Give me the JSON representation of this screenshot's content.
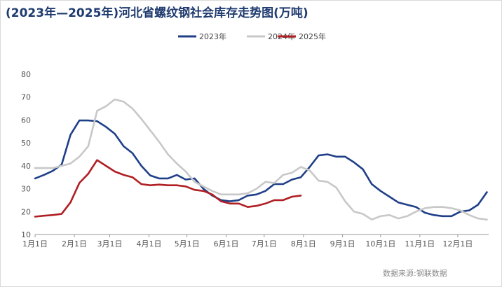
{
  "title": "(2023年—2025年)河北省螺纹钢社会库存走势图(万吨)",
  "source": "数据来源:钢联数据",
  "colors": {
    "2023年": "#1f3f87",
    "2024年": "#c8c8c8",
    "2025年": "#b01f24"
  },
  "chart_data": {
    "type": "line",
    "ylim": [
      10,
      80
    ],
    "yticks": [
      10,
      20,
      30,
      40,
      50,
      60,
      70,
      80
    ],
    "xlim": [
      0,
      51.2
    ],
    "xticks": [
      {
        "label": "1月1日",
        "week": 0
      },
      {
        "label": "2月1日",
        "week": 4.43
      },
      {
        "label": "3月1日",
        "week": 8.43
      },
      {
        "label": "4月1日",
        "week": 12.86
      },
      {
        "label": "5月1日",
        "week": 17.14
      },
      {
        "label": "6月1日",
        "week": 21.57
      },
      {
        "label": "7月1日",
        "week": 25.86
      },
      {
        "label": "8月1日",
        "week": 30.29
      },
      {
        "label": "9月1日",
        "week": 34.71
      },
      {
        "label": "10月1日",
        "week": 39
      },
      {
        "label": "11月1日",
        "week": 43.43
      },
      {
        "label": "12月1日",
        "week": 47.71
      }
    ],
    "legend": "top-center",
    "grid": false,
    "series": [
      {
        "name": "2023年",
        "values": [
          34.5,
          36,
          37.8,
          40.5,
          53.5,
          59.8,
          59.8,
          59.5,
          57,
          54,
          48.5,
          45.5,
          40,
          35.8,
          34.5,
          34.5,
          36,
          34,
          34.5,
          30,
          27,
          25,
          24.5,
          25,
          27,
          27.5,
          29,
          32,
          32,
          34,
          35,
          39.5,
          44.5,
          45,
          44,
          44,
          41.5,
          38.5,
          32,
          29,
          26.5,
          24,
          23,
          22,
          19.5,
          18.5,
          18,
          18,
          20,
          20.5,
          23,
          28.5
        ]
      },
      {
        "name": "2024年",
        "values": [
          39,
          39,
          39,
          40,
          41,
          44,
          48.5,
          64,
          66,
          69,
          68,
          65,
          60.5,
          55.5,
          50.5,
          45,
          41,
          37.5,
          33,
          31,
          29,
          27.5,
          27.5,
          27.5,
          28,
          30,
          33,
          32.5,
          36,
          37,
          39.5,
          38,
          33.5,
          33,
          30.5,
          24.5,
          20,
          19,
          16.5,
          18,
          18.5,
          17,
          18,
          20,
          21.5,
          22,
          22,
          21.5,
          20.5,
          18.5,
          17,
          16.5
        ]
      },
      {
        "name": "2025年",
        "values": [
          17.8,
          18.2,
          18.5,
          19,
          24,
          32.5,
          36.5,
          42.5,
          40,
          37.5,
          36,
          35,
          32,
          31.5,
          31.8,
          31.5,
          31.5,
          31,
          29.5,
          29,
          27.5,
          24.5,
          23.5,
          23.5,
          22,
          22.5,
          23.5,
          25,
          25,
          26.5,
          27
        ]
      }
    ]
  }
}
